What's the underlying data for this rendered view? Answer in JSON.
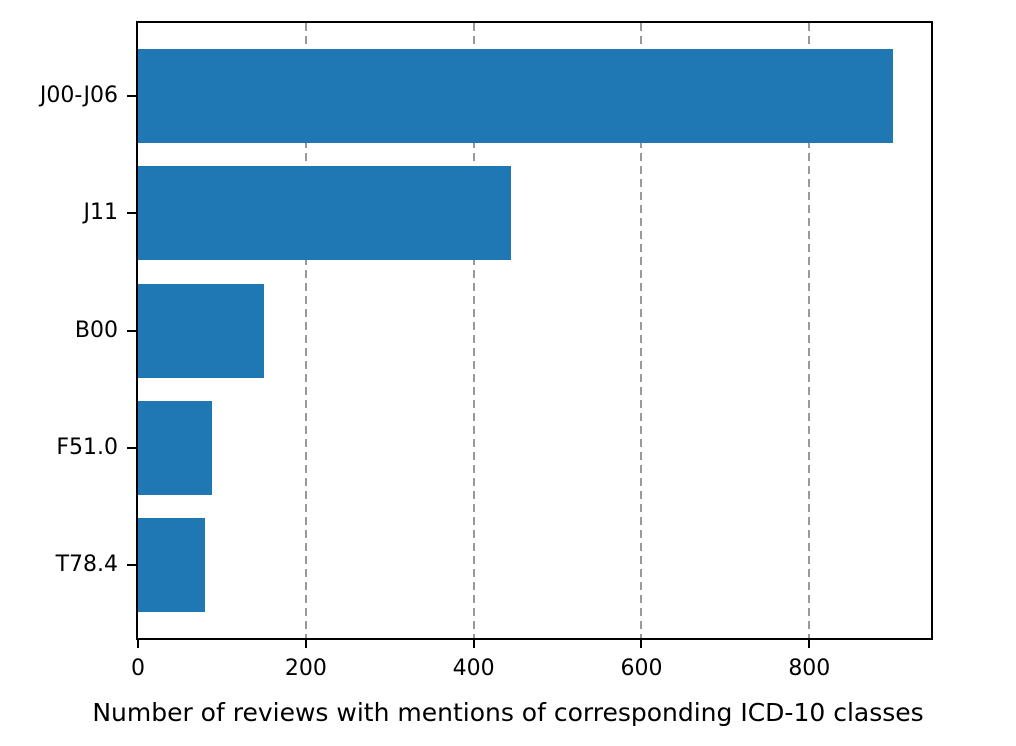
{
  "chart_data": {
    "type": "bar",
    "orientation": "horizontal",
    "title": "",
    "xlabel": "Number of reviews with mentions of corresponding ICD-10 classes",
    "ylabel": "",
    "categories": [
      "J00-J06",
      "J11",
      "B00",
      "F51.0",
      "T78.4"
    ],
    "values": [
      900,
      444,
      150,
      88,
      80
    ],
    "x_ticks": [
      0,
      200,
      400,
      600,
      800
    ],
    "xlim": [
      0,
      945
    ],
    "grid": {
      "axis": "x",
      "positions": [
        200,
        400,
        600,
        800
      ],
      "style": "dashed",
      "color": "#9a9a9a"
    },
    "bar_color": "#1f77b4",
    "spine_color": "#000000",
    "background_color": "#ffffff",
    "legend": "none"
  }
}
